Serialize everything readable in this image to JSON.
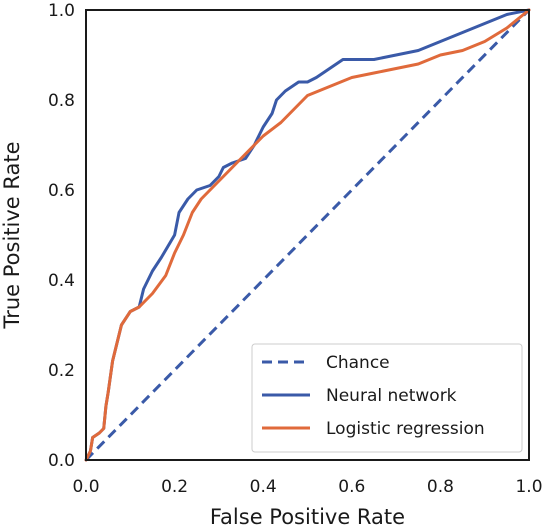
{
  "chart_data": {
    "type": "line",
    "xlabel": "False Positive Rate",
    "ylabel": "True Positive Rate",
    "xlim": [
      0.0,
      1.0
    ],
    "ylim": [
      0.0,
      1.0
    ],
    "xticks": [
      "0.0",
      "0.2",
      "0.4",
      "0.6",
      "0.8",
      "1.0"
    ],
    "yticks": [
      "0.0",
      "0.2",
      "0.4",
      "0.6",
      "0.8",
      "1.0"
    ],
    "grid": false,
    "legend_position": "lower-right",
    "series": [
      {
        "name": "Chance",
        "style": "dashed",
        "color": "#3a5aa8",
        "points": [
          [
            0.0,
            0.0
          ],
          [
            1.0,
            1.0
          ]
        ]
      },
      {
        "name": "Neural network",
        "style": "solid",
        "color": "#3a5aa8",
        "points": [
          [
            0.0,
            0.0
          ],
          [
            0.01,
            0.02
          ],
          [
            0.015,
            0.05
          ],
          [
            0.03,
            0.06
          ],
          [
            0.04,
            0.07
          ],
          [
            0.045,
            0.12
          ],
          [
            0.05,
            0.15
          ],
          [
            0.06,
            0.22
          ],
          [
            0.07,
            0.26
          ],
          [
            0.08,
            0.3
          ],
          [
            0.1,
            0.33
          ],
          [
            0.12,
            0.34
          ],
          [
            0.13,
            0.38
          ],
          [
            0.15,
            0.42
          ],
          [
            0.17,
            0.45
          ],
          [
            0.2,
            0.5
          ],
          [
            0.21,
            0.55
          ],
          [
            0.23,
            0.58
          ],
          [
            0.25,
            0.6
          ],
          [
            0.28,
            0.61
          ],
          [
            0.3,
            0.63
          ],
          [
            0.31,
            0.65
          ],
          [
            0.33,
            0.66
          ],
          [
            0.36,
            0.67
          ],
          [
            0.38,
            0.7
          ],
          [
            0.4,
            0.74
          ],
          [
            0.42,
            0.77
          ],
          [
            0.43,
            0.8
          ],
          [
            0.45,
            0.82
          ],
          [
            0.48,
            0.84
          ],
          [
            0.5,
            0.84
          ],
          [
            0.52,
            0.85
          ],
          [
            0.55,
            0.87
          ],
          [
            0.58,
            0.89
          ],
          [
            0.6,
            0.89
          ],
          [
            0.65,
            0.89
          ],
          [
            0.7,
            0.9
          ],
          [
            0.75,
            0.91
          ],
          [
            0.8,
            0.93
          ],
          [
            0.85,
            0.95
          ],
          [
            0.9,
            0.97
          ],
          [
            0.95,
            0.99
          ],
          [
            1.0,
            1.0
          ]
        ]
      },
      {
        "name": "Logistic regression",
        "style": "solid",
        "color": "#e06a3b",
        "points": [
          [
            0.0,
            0.0
          ],
          [
            0.01,
            0.02
          ],
          [
            0.015,
            0.05
          ],
          [
            0.03,
            0.06
          ],
          [
            0.04,
            0.07
          ],
          [
            0.045,
            0.12
          ],
          [
            0.05,
            0.15
          ],
          [
            0.06,
            0.22
          ],
          [
            0.07,
            0.26
          ],
          [
            0.08,
            0.3
          ],
          [
            0.1,
            0.33
          ],
          [
            0.12,
            0.34
          ],
          [
            0.15,
            0.37
          ],
          [
            0.18,
            0.41
          ],
          [
            0.2,
            0.46
          ],
          [
            0.22,
            0.5
          ],
          [
            0.24,
            0.55
          ],
          [
            0.26,
            0.58
          ],
          [
            0.28,
            0.6
          ],
          [
            0.3,
            0.62
          ],
          [
            0.33,
            0.65
          ],
          [
            0.36,
            0.68
          ],
          [
            0.38,
            0.7
          ],
          [
            0.4,
            0.72
          ],
          [
            0.44,
            0.75
          ],
          [
            0.47,
            0.78
          ],
          [
            0.5,
            0.81
          ],
          [
            0.55,
            0.83
          ],
          [
            0.6,
            0.85
          ],
          [
            0.65,
            0.86
          ],
          [
            0.7,
            0.87
          ],
          [
            0.75,
            0.88
          ],
          [
            0.8,
            0.9
          ],
          [
            0.85,
            0.91
          ],
          [
            0.9,
            0.93
          ],
          [
            0.95,
            0.96
          ],
          [
            1.0,
            1.0
          ]
        ]
      }
    ]
  }
}
